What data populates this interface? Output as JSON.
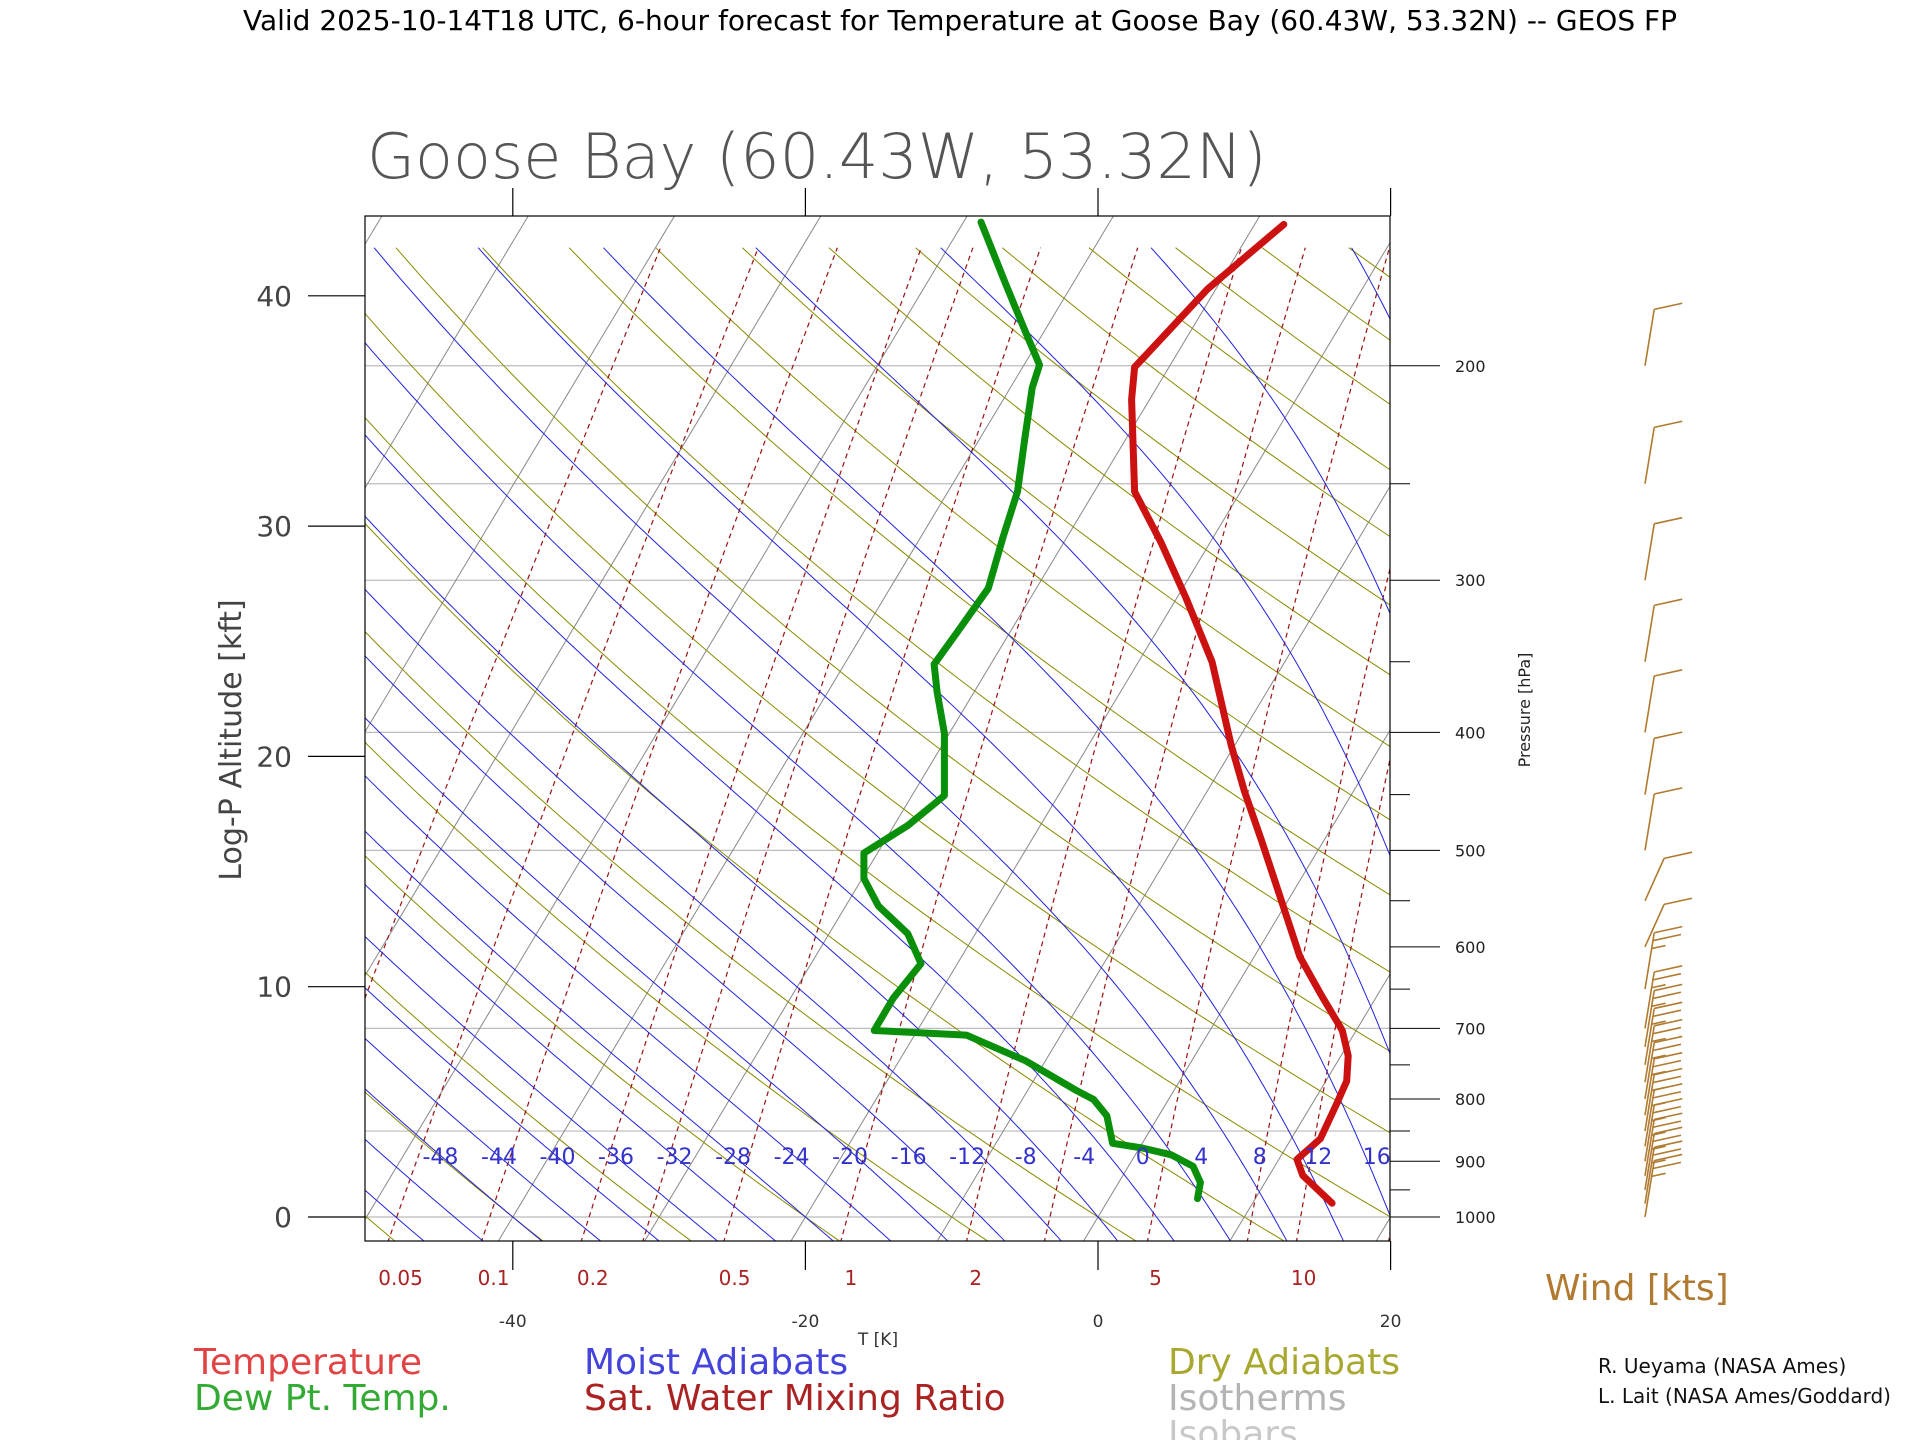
{
  "header": {
    "title": "Valid 2025-10-14T18 UTC, 6-hour forecast for Temperature at Goose Bay (60.43W, 53.32N) -- GEOS FP"
  },
  "chart_data": {
    "type": "line",
    "title": "Goose Bay (60.43W, 53.32N)",
    "ylabel": "Log-P Altitude [kft]",
    "xlabel": "T [K]",
    "y2label": "Pressure [hPa]",
    "xticks": [
      -40,
      -20,
      0,
      20
    ],
    "yticks": [
      0,
      10,
      20,
      30,
      40
    ],
    "pressure_ticks": [
      200,
      300,
      400,
      500,
      600,
      700,
      800,
      900,
      1000
    ],
    "ylim": [
      -1.1,
      43.2
    ],
    "moist_adiabat_labels": [
      "-48",
      "-44",
      "-40",
      "-36",
      "-32",
      "-28",
      "-24",
      "-20",
      "-16",
      "-12",
      "-8",
      "-4",
      "0",
      "4",
      "8",
      "12",
      "16"
    ],
    "mixing_ratio_labels": [
      "0.05",
      "0.1",
      "0.2",
      "0.5",
      "1",
      "2",
      "5",
      "10"
    ],
    "series": [
      {
        "name": "Temperature",
        "color": "#cc1111",
        "points": [
          [
            16.0,
            0.6
          ],
          [
            14.0,
            1.8
          ],
          [
            13.6,
            2.5
          ],
          [
            14.5,
            3.0
          ],
          [
            15.2,
            3.4
          ],
          [
            16.3,
            4.9
          ],
          [
            17.0,
            5.9
          ],
          [
            17.1,
            7.0
          ],
          [
            16.7,
            8.1
          ],
          [
            15.2,
            9.7
          ],
          [
            13.8,
            11.3
          ],
          [
            12.5,
            13.8
          ],
          [
            11.2,
            16.3
          ],
          [
            10.0,
            18.5
          ],
          [
            9.1,
            20.5
          ],
          [
            7.8,
            24.1
          ],
          [
            6.0,
            26.9
          ],
          [
            4.3,
            29.3
          ],
          [
            2.5,
            31.5
          ],
          [
            2.4,
            33.5
          ],
          [
            2.3,
            35.5
          ],
          [
            2.5,
            36.9
          ],
          [
            7.5,
            40.3
          ],
          [
            12.7,
            43.1
          ]
        ]
      },
      {
        "name": "Dew Pt. Temp.",
        "color": "#0a8f0a",
        "points": [
          [
            6.8,
            0.8
          ],
          [
            7.0,
            1.5
          ],
          [
            6.5,
            2.2
          ],
          [
            5.0,
            2.7
          ],
          [
            3.0,
            3.0
          ],
          [
            1.0,
            3.2
          ],
          [
            0.6,
            4.4
          ],
          [
            -0.3,
            5.1
          ],
          [
            -1.5,
            5.5
          ],
          [
            -5.0,
            6.8
          ],
          [
            -9.0,
            7.9
          ],
          [
            -15.3,
            8.1
          ],
          [
            -14.0,
            9.5
          ],
          [
            -12.1,
            11.0
          ],
          [
            -13.0,
            12.3
          ],
          [
            -15.0,
            13.5
          ],
          [
            -16.0,
            14.7
          ],
          [
            -16.0,
            15.8
          ],
          [
            -13.0,
            17.0
          ],
          [
            -10.5,
            18.3
          ],
          [
            -10.5,
            21.0
          ],
          [
            -11.0,
            22.8
          ],
          [
            -11.2,
            24.0
          ],
          [
            -9.5,
            25.5
          ],
          [
            -7.5,
            27.3
          ],
          [
            -6.5,
            29.5
          ],
          [
            -5.5,
            31.5
          ],
          [
            -5.0,
            33.8
          ],
          [
            -4.5,
            36.0
          ],
          [
            -4.0,
            37.0
          ],
          [
            -5.0,
            38.5
          ],
          [
            -6.3,
            40.5
          ],
          [
            -8.0,
            43.2
          ]
        ]
      }
    ],
    "wind_barbs": [
      {
        "p": 1000,
        "dir": 200,
        "speed": 25
      },
      {
        "p": 975,
        "dir": 200,
        "speed": 25
      },
      {
        "p": 950,
        "dir": 200,
        "speed": 25
      },
      {
        "p": 925,
        "dir": 200,
        "speed": 25
      },
      {
        "p": 900,
        "dir": 200,
        "speed": 25
      },
      {
        "p": 875,
        "dir": 200,
        "speed": 25
      },
      {
        "p": 850,
        "dir": 200,
        "speed": 25
      },
      {
        "p": 825,
        "dir": 200,
        "speed": 25
      },
      {
        "p": 800,
        "dir": 200,
        "speed": 25
      },
      {
        "p": 775,
        "dir": 200,
        "speed": 25
      },
      {
        "p": 750,
        "dir": 200,
        "speed": 25
      },
      {
        "p": 725,
        "dir": 200,
        "speed": 25
      },
      {
        "p": 700,
        "dir": 200,
        "speed": 25
      },
      {
        "p": 650,
        "dir": 200,
        "speed": 25
      },
      {
        "p": 600,
        "dir": 225,
        "speed": 10
      },
      {
        "p": 550,
        "dir": 225,
        "speed": 10
      },
      {
        "p": 500,
        "dir": 200,
        "speed": 10
      },
      {
        "p": 450,
        "dir": 200,
        "speed": 10
      },
      {
        "p": 400,
        "dir": 200,
        "speed": 10
      },
      {
        "p": 350,
        "dir": 200,
        "speed": 10
      },
      {
        "p": 300,
        "dir": 200,
        "speed": 10
      },
      {
        "p": 250,
        "dir": 200,
        "speed": 10
      },
      {
        "p": 200,
        "dir": 200,
        "speed": 10
      }
    ]
  },
  "legend": {
    "temperature": "Temperature",
    "dewpoint": "Dew Pt. Temp.",
    "moist": "Moist Adiabats",
    "mixing": "Sat. Water Mixing Ratio",
    "dry": "Dry Adiabats",
    "isotherms": "Isotherms",
    "isobars": "Isobars",
    "wind": "Wind [kts]"
  },
  "credits": [
    "R. Ueyama (NASA Ames)",
    "L. Lait (NASA Ames/Goddard)"
  ],
  "colors": {
    "temperature": "#cc1111",
    "dewpoint": "#0a8f0a",
    "moist": "#2222dd",
    "mixing": "#991111",
    "dry": "#8a8a00",
    "isotherm": "#888888",
    "isobar": "#bbbbbb",
    "wind": "#b07a30"
  }
}
